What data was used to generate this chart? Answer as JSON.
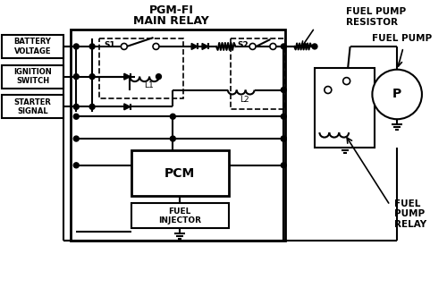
{
  "title_line1": "PGM-FI",
  "title_line2": "MAIN RELAY",
  "label_battery": "BATTERY\nVOLTAGE",
  "label_ignition": "IGNITION\nSWITCH",
  "label_starter": "STARTER\nSIGNAL",
  "label_s1": "S1",
  "label_s2": "S2",
  "label_l1": "L1",
  "label_l2": "L2",
  "label_pcm": "PCM",
  "label_fuel_injector": "FUEL\nINJECTOR",
  "label_fuel_pump_resistor": "FUEL PUMP\nRESISTOR",
  "label_fuel_pump": "FUEL PUMP",
  "label_fuel_pump_relay": "FUEL\nPUMP\nRELAY",
  "label_p": "P",
  "bg_color": "#ffffff",
  "line_color": "#000000"
}
